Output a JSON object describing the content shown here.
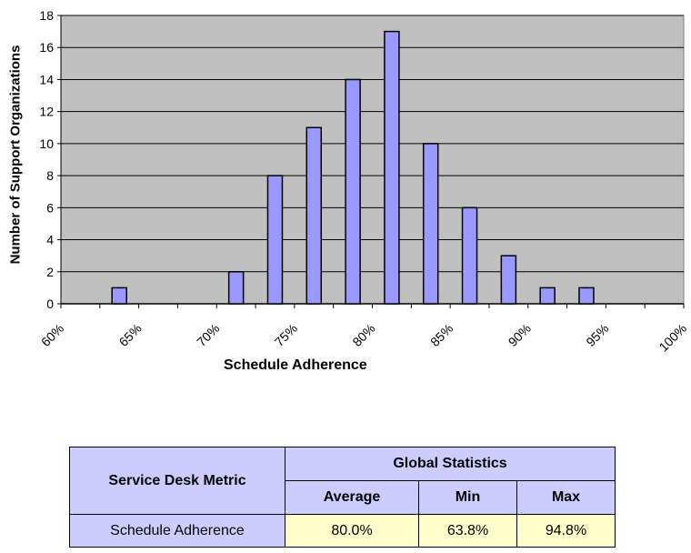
{
  "chart_data": {
    "type": "bar",
    "title": "",
    "xlabel": "Schedule Adherence",
    "ylabel": "Number of Support Organizations",
    "ylim": [
      0,
      18
    ],
    "yticks": [
      0,
      2,
      4,
      6,
      8,
      10,
      12,
      14,
      16,
      18
    ],
    "xtick_labels": [
      "60%",
      "65%",
      "70%",
      "75%",
      "80%",
      "85%",
      "90%",
      "95%",
      "100%"
    ],
    "grid": true,
    "legend": "none",
    "categories": [
      "60-62.5%",
      "62.5-65%",
      "65-67.5%",
      "67.5-70%",
      "70-72.5%",
      "72.5-75%",
      "75-77.5%",
      "77.5-80%",
      "80-82.5%",
      "82.5-85%",
      "85-87.5%",
      "87.5-90%",
      "90-92.5%",
      "92.5-95%",
      "95-97.5%",
      "97.5-100%"
    ],
    "values": [
      0,
      1,
      0,
      0,
      2,
      8,
      11,
      14,
      17,
      10,
      6,
      3,
      1,
      1,
      0,
      0
    ],
    "colors": {
      "bar": "#9999ff",
      "plot_bg": "#c0c0c0",
      "grid": "#000000"
    }
  },
  "table": {
    "metric_header": "Service Desk Metric",
    "group_header": "Global Statistics",
    "columns": [
      "Average",
      "Min",
      "Max"
    ],
    "rows": [
      {
        "metric": "Schedule Adherence",
        "average": "80.0%",
        "min": "63.8%",
        "max": "94.8%"
      }
    ]
  }
}
